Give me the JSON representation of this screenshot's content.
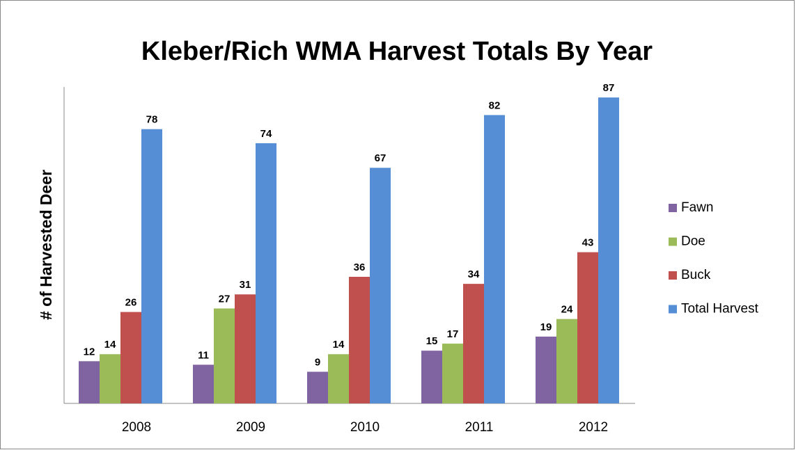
{
  "chart_data": {
    "type": "bar",
    "title": "Kleber/Rich WMA Harvest Totals By Year",
    "y_label": "# of Harvested Deer",
    "categories": [
      "2008",
      "2009",
      "2010",
      "2011",
      "2012"
    ],
    "series": [
      {
        "name": "Fawn",
        "color": "#8064a2",
        "values": [
          12,
          11,
          9,
          15,
          19
        ]
      },
      {
        "name": "Doe",
        "color": "#9bbb59",
        "values": [
          14,
          27,
          14,
          17,
          24
        ]
      },
      {
        "name": "Buck",
        "color": "#c0504d",
        "values": [
          26,
          31,
          36,
          34,
          43
        ]
      },
      {
        "name": "Total Harvest",
        "color": "#558ed5",
        "values": [
          78,
          74,
          67,
          82,
          87
        ]
      }
    ],
    "ylim": [
      0,
      90
    ],
    "legend": "right"
  }
}
